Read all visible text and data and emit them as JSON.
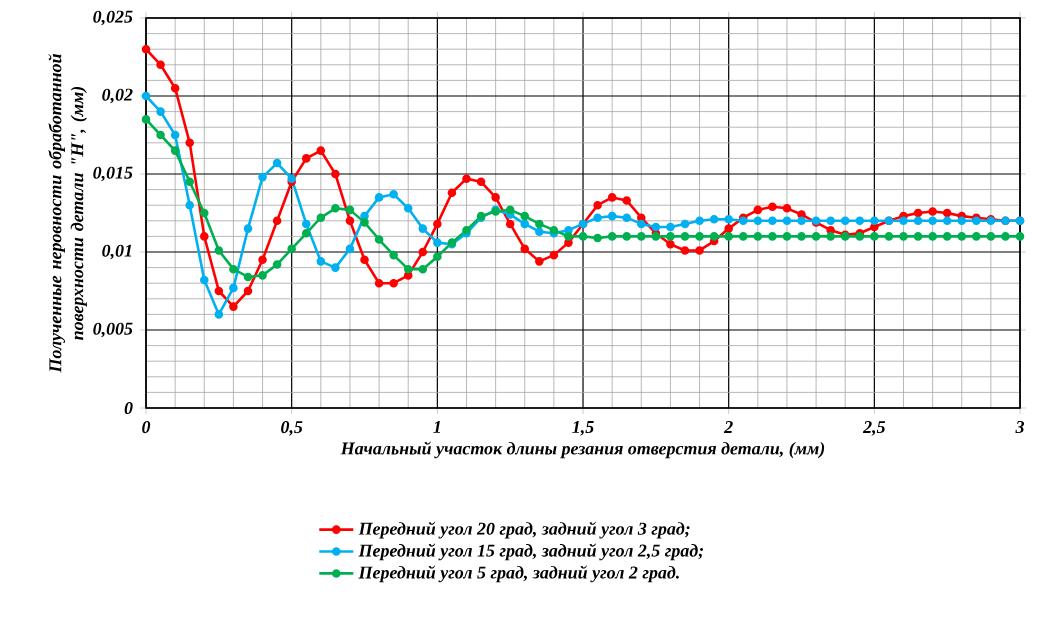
{
  "chart_data": {
    "type": "line",
    "xlabel": "Начальный участок длины резания отверстия детали, (мм)",
    "ylabel": "Полученные неровности обработанной поверхности детали \"H\", (мм)",
    "x": [
      0,
      0.05,
      0.1,
      0.15,
      0.2,
      0.25,
      0.3,
      0.35,
      0.4,
      0.45,
      0.5,
      0.55,
      0.6,
      0.65,
      0.7,
      0.75,
      0.8,
      0.85,
      0.9,
      0.95,
      1,
      1.05,
      1.1,
      1.15,
      1.2,
      1.25,
      1.3,
      1.35,
      1.4,
      1.45,
      1.5,
      1.55,
      1.6,
      1.65,
      1.7,
      1.75,
      1.8,
      1.85,
      1.9,
      1.95,
      2,
      2.05,
      2.1,
      2.15,
      2.2,
      2.25,
      2.3,
      2.35,
      2.4,
      2.45,
      2.5,
      2.55,
      2.6,
      2.65,
      2.7,
      2.75,
      2.8,
      2.85,
      2.9,
      2.95,
      3
    ],
    "series": [
      {
        "name": "Передний угол 20 град, задний угол 3 град;",
        "color": "#ff0000",
        "values": [
          0.023,
          0.022,
          0.0205,
          0.017,
          0.011,
          0.0075,
          0.0065,
          0.0075,
          0.0095,
          0.012,
          0.0145,
          0.016,
          0.0165,
          0.015,
          0.012,
          0.0095,
          0.008,
          0.008,
          0.0085,
          0.01,
          0.0118,
          0.0138,
          0.0147,
          0.0145,
          0.0135,
          0.0118,
          0.0102,
          0.0094,
          0.0098,
          0.0106,
          0.0118,
          0.013,
          0.0135,
          0.0133,
          0.0122,
          0.0112,
          0.0105,
          0.0101,
          0.0101,
          0.0107,
          0.0115,
          0.0122,
          0.0127,
          0.0129,
          0.0128,
          0.0124,
          0.0119,
          0.0114,
          0.0111,
          0.0112,
          0.0116,
          0.012,
          0.0123,
          0.0125,
          0.0126,
          0.0125,
          0.0123,
          0.0122,
          0.0121,
          0.012,
          0.012
        ]
      },
      {
        "name": "Передний угол 15 град, задний угол 2,5 град;",
        "color": "#00b0f0",
        "values": [
          0.02,
          0.019,
          0.0175,
          0.013,
          0.0082,
          0.006,
          0.0077,
          0.0115,
          0.0148,
          0.0157,
          0.0147,
          0.0118,
          0.0094,
          0.009,
          0.0102,
          0.0123,
          0.0135,
          0.0137,
          0.0128,
          0.0115,
          0.0106,
          0.0105,
          0.0112,
          0.0122,
          0.0127,
          0.0124,
          0.0118,
          0.0113,
          0.0112,
          0.0114,
          0.0118,
          0.0122,
          0.0123,
          0.0122,
          0.0118,
          0.0116,
          0.0116,
          0.0118,
          0.012,
          0.0121,
          0.0121,
          0.012,
          0.012,
          0.012,
          0.012,
          0.012,
          0.012,
          0.012,
          0.012,
          0.012,
          0.012,
          0.012,
          0.012,
          0.012,
          0.012,
          0.012,
          0.012,
          0.012,
          0.012,
          0.012,
          0.012
        ]
      },
      {
        "name": "Передний угол 5 град, задний угол 2 град.",
        "color": "#00b050",
        "values": [
          0.0185,
          0.0175,
          0.0165,
          0.0145,
          0.0125,
          0.0101,
          0.0089,
          0.0084,
          0.0085,
          0.0092,
          0.0102,
          0.0112,
          0.0122,
          0.0128,
          0.0127,
          0.0119,
          0.0108,
          0.0098,
          0.0089,
          0.0089,
          0.0097,
          0.0106,
          0.0114,
          0.0123,
          0.0126,
          0.0127,
          0.0123,
          0.0118,
          0.0114,
          0.011,
          0.011,
          0.0109,
          0.011,
          0.011,
          0.011,
          0.011,
          0.011,
          0.011,
          0.011,
          0.011,
          0.011,
          0.011,
          0.011,
          0.011,
          0.011,
          0.011,
          0.011,
          0.011,
          0.011,
          0.011,
          0.011,
          0.011,
          0.011,
          0.011,
          0.011,
          0.011,
          0.011,
          0.011,
          0.011,
          0.011,
          0.011
        ]
      }
    ],
    "xlim": [
      0,
      3
    ],
    "xticks": [
      0,
      {
        "value": 0.5,
        "label": "0,5"
      },
      1,
      {
        "value": 1.5,
        "label": "1,5"
      },
      2,
      {
        "value": 2.5,
        "label": "2,5"
      },
      3
    ],
    "ylim": [
      0,
      0.025
    ],
    "yticks": [
      0,
      {
        "value": 0.005,
        "label": "0,005"
      },
      {
        "value": 0.01,
        "label": "0,01"
      },
      {
        "value": 0.015,
        "label": "0,015"
      },
      {
        "value": 0.02,
        "label": "0,02"
      },
      {
        "value": 0.025,
        "label": "0,025"
      }
    ],
    "grid": true,
    "legend": "bottom",
    "marker": "circle",
    "line_style": "solid"
  }
}
